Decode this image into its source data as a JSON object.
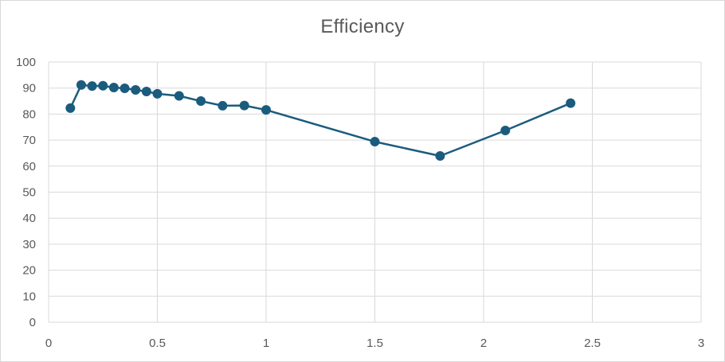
{
  "chart_data": {
    "type": "line",
    "title": "Efficiency",
    "xlabel": "",
    "ylabel": "",
    "xlim": [
      0,
      3
    ],
    "ylim": [
      0,
      100
    ],
    "x_ticks": [
      "0",
      "0.5",
      "1",
      "1.5",
      "2",
      "2.5",
      "3"
    ],
    "y_ticks": [
      "0",
      "10",
      "20",
      "30",
      "40",
      "50",
      "60",
      "70",
      "80",
      "90",
      "100"
    ],
    "grid": true,
    "legend": "none",
    "series": [
      {
        "color": "#1b5c7e",
        "points": [
          {
            "x": 0.1,
            "y": 82.3
          },
          {
            "x": 0.15,
            "y": 91.2
          },
          {
            "x": 0.2,
            "y": 90.8
          },
          {
            "x": 0.25,
            "y": 90.9
          },
          {
            "x": 0.3,
            "y": 90.2
          },
          {
            "x": 0.35,
            "y": 89.9
          },
          {
            "x": 0.4,
            "y": 89.3
          },
          {
            "x": 0.45,
            "y": 88.7
          },
          {
            "x": 0.5,
            "y": 87.8
          },
          {
            "x": 0.6,
            "y": 87.0
          },
          {
            "x": 0.7,
            "y": 85.0
          },
          {
            "x": 0.8,
            "y": 83.2
          },
          {
            "x": 0.9,
            "y": 83.3
          },
          {
            "x": 1.0,
            "y": 81.6
          },
          {
            "x": 1.5,
            "y": 69.4
          },
          {
            "x": 1.8,
            "y": 63.9
          },
          {
            "x": 2.1,
            "y": 73.7
          },
          {
            "x": 2.4,
            "y": 84.2
          }
        ]
      }
    ]
  }
}
